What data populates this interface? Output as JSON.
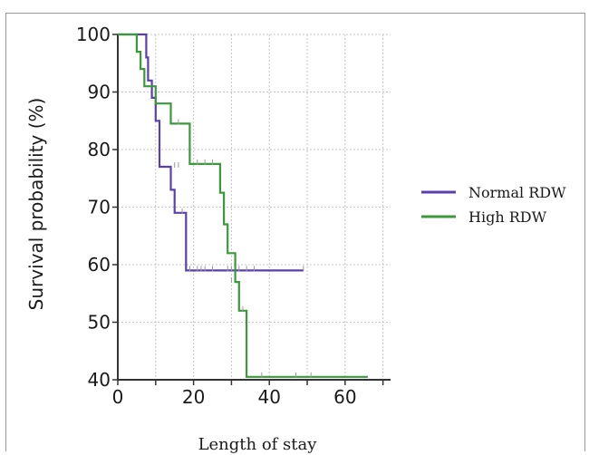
{
  "chart_data": {
    "type": "line",
    "subtype": "kaplan-meier step",
    "title": "",
    "xlabel": "Length of stay",
    "ylabel": "Survival probability (%)",
    "xlim": [
      0,
      72
    ],
    "ylim": [
      40,
      100
    ],
    "xticks": [
      "0",
      "20",
      "40",
      "60"
    ],
    "yticks": [
      "40",
      "50",
      "60",
      "70",
      "80",
      "90",
      "100"
    ],
    "grid": true,
    "legend_position": "right",
    "series": [
      {
        "name": "Normal RDW",
        "color": "#5a3fb0",
        "steps": [
          [
            0,
            100
          ],
          [
            7.5,
            100
          ],
          [
            7.5,
            96
          ],
          [
            8,
            96
          ],
          [
            8,
            92
          ],
          [
            9,
            92
          ],
          [
            9,
            89
          ],
          [
            10,
            89
          ],
          [
            10,
            85
          ],
          [
            11,
            85
          ],
          [
            11,
            77
          ],
          [
            14,
            77
          ],
          [
            14,
            73
          ],
          [
            15,
            73
          ],
          [
            15,
            69
          ],
          [
            18,
            69
          ],
          [
            18,
            59
          ],
          [
            49,
            59
          ]
        ],
        "censored": [
          [
            15,
            77
          ],
          [
            16,
            77
          ],
          [
            17,
            69
          ],
          [
            19,
            59
          ],
          [
            21,
            59
          ],
          [
            22,
            59
          ],
          [
            23,
            59
          ],
          [
            25,
            59
          ],
          [
            29,
            59
          ],
          [
            30,
            59
          ],
          [
            32,
            59
          ],
          [
            34,
            59
          ],
          [
            36,
            59
          ],
          [
            49,
            59
          ]
        ]
      },
      {
        "name": "High RDW",
        "color": "#3a9a3a",
        "steps": [
          [
            0,
            100
          ],
          [
            5,
            100
          ],
          [
            5,
            97
          ],
          [
            6,
            97
          ],
          [
            6,
            94
          ],
          [
            7,
            94
          ],
          [
            7,
            91
          ],
          [
            10,
            91
          ],
          [
            10,
            88
          ],
          [
            14,
            88
          ],
          [
            14,
            84.5
          ],
          [
            19,
            84.5
          ],
          [
            19,
            77.5
          ],
          [
            27,
            77.5
          ],
          [
            27,
            72.5
          ],
          [
            28,
            72.5
          ],
          [
            28,
            67
          ],
          [
            29,
            67
          ],
          [
            29,
            62
          ],
          [
            31,
            62
          ],
          [
            31,
            57
          ],
          [
            32,
            57
          ],
          [
            32,
            52
          ],
          [
            34,
            52
          ],
          [
            34,
            40.5
          ],
          [
            66,
            40.5
          ]
        ],
        "censored": [
          [
            16,
            84.5
          ],
          [
            21,
            77.5
          ],
          [
            23,
            77.5
          ],
          [
            25,
            77.5
          ],
          [
            30,
            57
          ],
          [
            33,
            52
          ],
          [
            38,
            40.5
          ],
          [
            47,
            40.5
          ],
          [
            51,
            40.5
          ]
        ]
      }
    ]
  }
}
